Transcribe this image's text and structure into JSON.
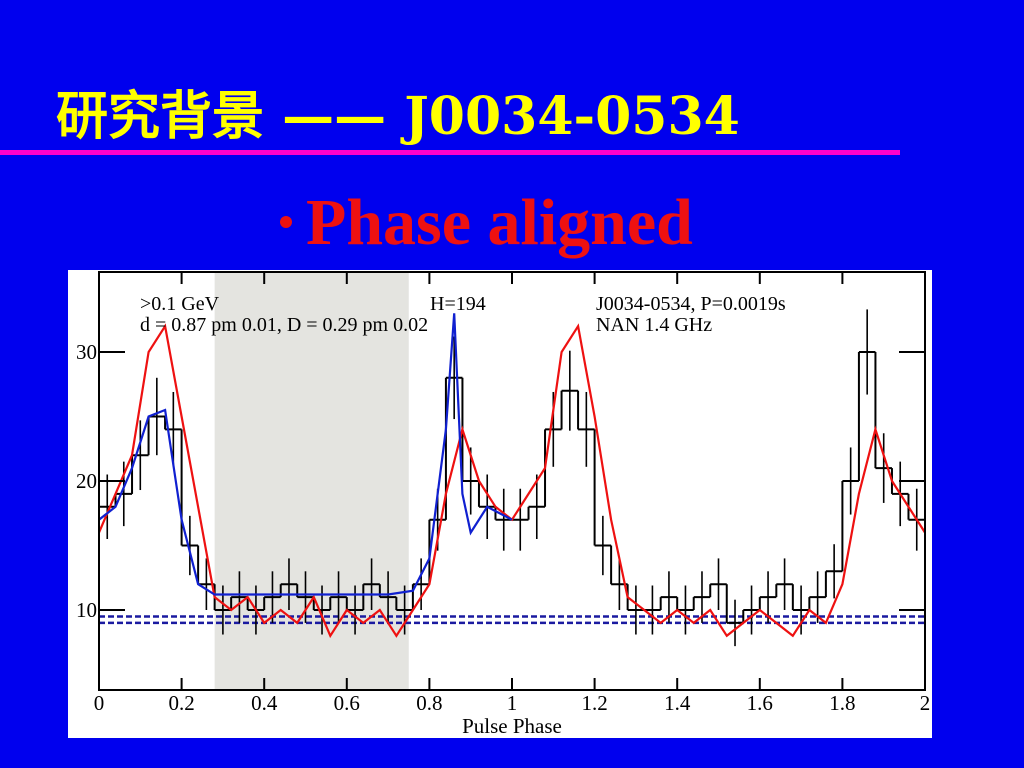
{
  "slide": {
    "title": "研究背景 —— J0034-0534",
    "bullet": "Phase aligned"
  },
  "chart_data": {
    "type": "line",
    "x_label": "Pulse Phase",
    "annotations": [
      {
        "text": ">0.1 GeV",
        "color": "#000000"
      },
      {
        "text": "H=194",
        "color": "#000000"
      },
      {
        "text": "d = 0.87 pm 0.01,  D = 0.29 pm 0.02",
        "color": "#e00000"
      },
      {
        "text": "J0034-0534, P=0.0019s",
        "color": "#e00000"
      },
      {
        "text": "NAN 1.4 GHz",
        "color": "#e00000"
      }
    ],
    "xlim": [
      0,
      2
    ],
    "xticks": [
      0,
      0.2,
      0.4,
      0.6,
      0.8,
      1,
      1.2,
      1.4,
      1.6,
      1.8,
      2
    ],
    "ylim": [
      3.8,
      36.2
    ],
    "yticks": [
      10,
      20,
      30
    ],
    "shaded_region": [
      0.28,
      0.75
    ],
    "shaded_color": "#e4e4e0",
    "background_levels": [
      9.0,
      9.5
    ],
    "background_color": "#1a1aa0",
    "series": [
      {
        "style": "histogram",
        "color": "#000000",
        "bin_width": 0.04,
        "x": [
          0.02,
          0.06,
          0.1,
          0.14,
          0.18,
          0.22,
          0.26,
          0.3,
          0.34,
          0.38,
          0.42,
          0.46,
          0.5,
          0.54,
          0.58,
          0.62,
          0.66,
          0.7,
          0.74,
          0.78,
          0.82,
          0.86,
          0.9,
          0.94,
          0.98,
          1.02,
          1.06,
          1.1,
          1.14,
          1.18,
          1.22,
          1.26,
          1.3,
          1.34,
          1.38,
          1.42,
          1.46,
          1.5,
          1.54,
          1.58,
          1.62,
          1.66,
          1.7,
          1.74,
          1.78,
          1.82,
          1.86,
          1.9,
          1.94,
          1.98
        ],
        "values": [
          18,
          19,
          22,
          25,
          24,
          15,
          12,
          10,
          11,
          10,
          11,
          12,
          11,
          10,
          11,
          10,
          12,
          11,
          10,
          12,
          17,
          28,
          20,
          18,
          17,
          17,
          18,
          24,
          27,
          24,
          15,
          12,
          10,
          10,
          11,
          10,
          11,
          12,
          9,
          10,
          11,
          12,
          10,
          11,
          13,
          20,
          30,
          21,
          19,
          17
        ],
        "errors": [
          2.5,
          2.5,
          2.7,
          3,
          2.9,
          2.3,
          2,
          1.9,
          2,
          1.9,
          2,
          2,
          2,
          1.9,
          2,
          1.9,
          2,
          2,
          1.9,
          2,
          2.4,
          3.2,
          2.6,
          2.5,
          2.4,
          2.4,
          2.5,
          2.9,
          3.1,
          2.9,
          2.3,
          2,
          1.9,
          1.9,
          2,
          1.9,
          2,
          2,
          1.8,
          1.9,
          2,
          2,
          1.9,
          2,
          2.1,
          2.6,
          3.3,
          2.7,
          2.5,
          2.4
        ]
      },
      {
        "style": "line",
        "color": "#ee1111",
        "x": [
          0,
          0.04,
          0.08,
          0.12,
          0.16,
          0.2,
          0.24,
          0.28,
          0.32,
          0.36,
          0.4,
          0.44,
          0.48,
          0.52,
          0.56,
          0.6,
          0.64,
          0.68,
          0.72,
          0.76,
          0.8,
          0.84,
          0.88,
          0.92,
          0.96,
          1,
          1.04,
          1.08,
          1.12,
          1.16,
          1.2,
          1.24,
          1.28,
          1.32,
          1.36,
          1.4,
          1.44,
          1.48,
          1.52,
          1.56,
          1.6,
          1.64,
          1.68,
          1.72,
          1.76,
          1.8,
          1.84,
          1.88,
          1.92,
          1.96,
          2
        ],
        "values": [
          16,
          19,
          22,
          30,
          32,
          25,
          18,
          11,
          10,
          11,
          9,
          10,
          9,
          11,
          8,
          10,
          9,
          10,
          8,
          10,
          12,
          19,
          24,
          20,
          18,
          17,
          19,
          21,
          30,
          32,
          25,
          17,
          11,
          10,
          9,
          10,
          9,
          10,
          8,
          9,
          10,
          9,
          8,
          10,
          9,
          12,
          19,
          24,
          20,
          18,
          16
        ]
      },
      {
        "style": "line",
        "color": "#1020d0",
        "x": [
          0,
          0.04,
          0.08,
          0.12,
          0.16,
          0.2,
          0.24,
          0.28,
          0.4,
          0.5,
          0.6,
          0.7,
          0.76,
          0.8,
          0.84,
          0.86,
          0.88,
          0.9,
          0.94,
          1
        ],
        "values": [
          17,
          18,
          21,
          25,
          25.5,
          17,
          12,
          11.2,
          11.2,
          11.2,
          11.2,
          11.2,
          11.5,
          14,
          24,
          33,
          19,
          16,
          18,
          17
        ]
      }
    ]
  }
}
